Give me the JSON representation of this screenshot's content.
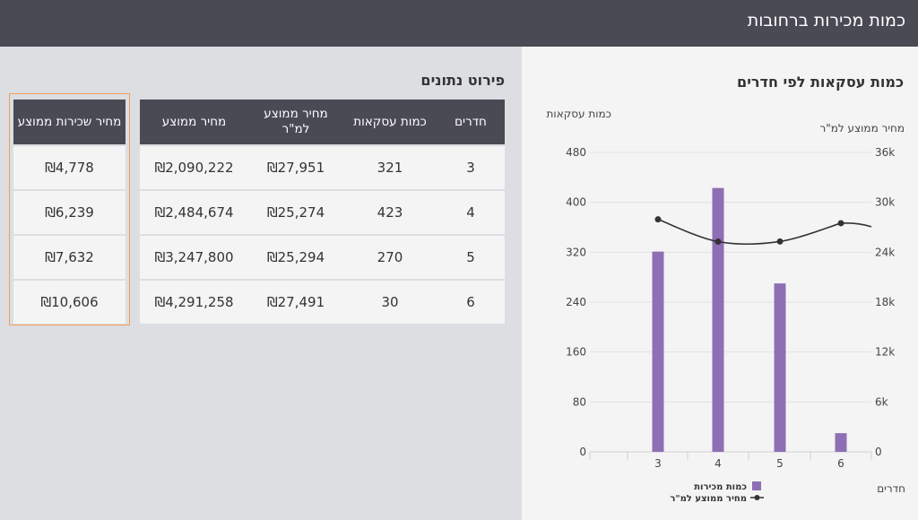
{
  "header": {
    "title": "כמות מכירות ברחובות"
  },
  "details": {
    "title": "פירוט נתונים",
    "columns": {
      "rooms": "חדרים",
      "count": "כמות עסקאות",
      "price_per_meter": "מחיר ממוצע למ\"ר",
      "avg_price": "מחיר ממוצע"
    },
    "rows": [
      {
        "rooms": "3",
        "count": "321",
        "price_per_meter": "₪27,951",
        "avg_price": "₪2,090,222"
      },
      {
        "rooms": "4",
        "count": "423",
        "price_per_meter": "₪25,274",
        "avg_price": "₪2,484,674"
      },
      {
        "rooms": "5",
        "count": "270",
        "price_per_meter": "₪25,294",
        "avg_price": "₪3,247,800"
      },
      {
        "rooms": "6",
        "count": "30",
        "price_per_meter": "₪27,491",
        "avg_price": "₪4,291,258"
      }
    ]
  },
  "rent": {
    "header": "מחיר שכירות ממוצע",
    "rows": [
      "₪4,778",
      "₪6,239",
      "₪7,632",
      "₪10,606"
    ]
  },
  "chart_section": {
    "title": "כמות עסקאות לפי חדרים"
  },
  "chart_data": {
    "type": "bar",
    "categories": [
      "3",
      "4",
      "5",
      "6"
    ],
    "series": [
      {
        "name": "כמות מכירות",
        "type": "bar",
        "axis": "left",
        "color": "#8e6fb5",
        "values": [
          321,
          423,
          270,
          30
        ]
      },
      {
        "name": "מחיר ממוצע למ\"ר",
        "type": "line",
        "axis": "right",
        "color": "#333333",
        "values": [
          27951,
          25274,
          25294,
          27491
        ]
      }
    ],
    "xlabel": "חדרים",
    "ylabel_left": "כמות עסקאות",
    "ylabel_right": "מחיר ממוצע למ\"ר",
    "ylim_left": [
      0,
      480
    ],
    "yticks_left": [
      "0",
      "80",
      "160",
      "240",
      "320",
      "400",
      "480"
    ],
    "ylim_right": [
      0,
      36000
    ],
    "yticks_right": [
      "0",
      "6k",
      "12k",
      "18k",
      "24k",
      "30k",
      "36k"
    ],
    "grid": true,
    "legend": "bottom"
  }
}
